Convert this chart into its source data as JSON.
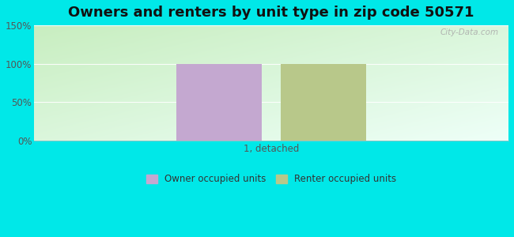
{
  "title": "Owners and renters by unit type in zip code 50571",
  "categories": [
    "1, detached"
  ],
  "owner_values": [
    100
  ],
  "renter_values": [
    100
  ],
  "owner_color": "#c4a8d0",
  "renter_color": "#b8c88a",
  "ylim": [
    0,
    150
  ],
  "yticks": [
    0,
    50,
    100,
    150
  ],
  "ytick_labels": [
    "0%",
    "50%",
    "100%",
    "150%"
  ],
  "background_color": "#00e8e8",
  "legend_owner": "Owner occupied units",
  "legend_renter": "Renter occupied units",
  "watermark": "City-Data.com",
  "bar_width": 0.18,
  "title_fontsize": 13
}
